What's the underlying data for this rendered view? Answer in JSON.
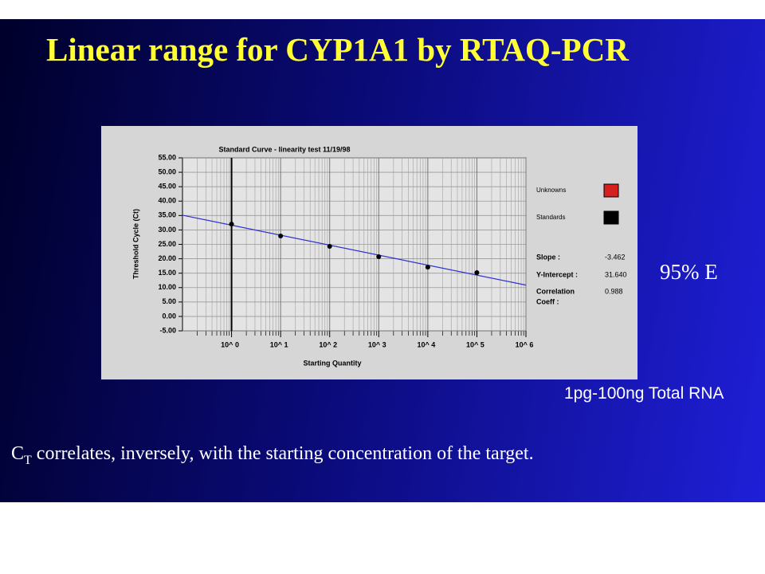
{
  "slide": {
    "title": "Linear range for CYP1A1 by RTAQ-PCR",
    "efficiency": "95% E",
    "range_note": "1pg-100ng Total RNA",
    "footnote": {
      "symbol": "C",
      "subscript": "T",
      "text": " correlates, inversely, with the starting concentration of the target."
    }
  },
  "chart_data": {
    "type": "scatter",
    "title": "Standard Curve - linearity test 11/19/98",
    "x_label": "Starting Quantity",
    "y_label": "Threshold Cycle (Ct)",
    "log_x": true,
    "grid": true,
    "xlim": [
      0.1,
      1000000
    ],
    "xticks": [
      {
        "value": 1,
        "label": "10^ 0"
      },
      {
        "value": 10,
        "label": "10^ 1"
      },
      {
        "value": 100,
        "label": "10^ 2"
      },
      {
        "value": 1000,
        "label": "10^ 3"
      },
      {
        "value": 10000,
        "label": "10^ 4"
      },
      {
        "value": 100000,
        "label": "10^ 5"
      },
      {
        "value": 1000000,
        "label": "10^ 6"
      }
    ],
    "ylim": [
      -5,
      55
    ],
    "yticks": [
      {
        "value": 55,
        "label": "55.00"
      },
      {
        "value": 50,
        "label": "50.00"
      },
      {
        "value": 45,
        "label": "45.00"
      },
      {
        "value": 40,
        "label": "40.00"
      },
      {
        "value": 35,
        "label": "35.00"
      },
      {
        "value": 30,
        "label": "30.00"
      },
      {
        "value": 25,
        "label": "25.00"
      },
      {
        "value": 20,
        "label": "20.00"
      },
      {
        "value": 15,
        "label": "15.00"
      },
      {
        "value": 10,
        "label": "10.00"
      },
      {
        "value": 5,
        "label": "5.00"
      },
      {
        "value": 0,
        "label": "0.00"
      },
      {
        "value": -5,
        "label": "-5.00"
      }
    ],
    "series": [
      {
        "name": "Unknowns",
        "color": "#d42020",
        "x": [],
        "values": []
      },
      {
        "name": "Standards",
        "color": "#000000",
        "x": [
          1,
          10,
          100,
          1000,
          10000,
          100000
        ],
        "values": [
          32.0,
          27.9,
          24.3,
          20.7,
          17.1,
          15.2
        ]
      }
    ],
    "fit": {
      "slope": -3.462,
      "intercept": {
        "value": 31.64,
        "label": "31.640"
      },
      "r": 0.988,
      "color": "#3030d0",
      "labels": [
        "Slope :",
        "Y-Intercept :",
        "Correlation",
        "Coeff :"
      ]
    }
  }
}
